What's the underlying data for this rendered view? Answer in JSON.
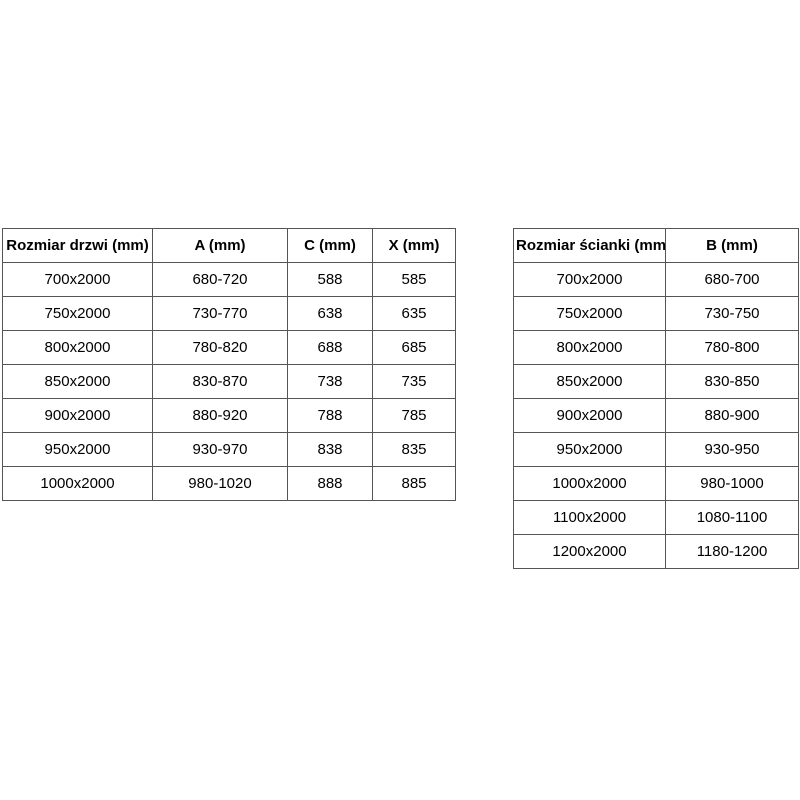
{
  "left_table": {
    "headers": [
      "Rozmiar drzwi (mm)",
      "A (mm)",
      "C (mm)",
      "X (mm)"
    ],
    "rows": [
      [
        "700x2000",
        "680-720",
        "588",
        "585"
      ],
      [
        "750x2000",
        "730-770",
        "638",
        "635"
      ],
      [
        "800x2000",
        "780-820",
        "688",
        "685"
      ],
      [
        "850x2000",
        "830-870",
        "738",
        "735"
      ],
      [
        "900x2000",
        "880-920",
        "788",
        "785"
      ],
      [
        "950x2000",
        "930-970",
        "838",
        "835"
      ],
      [
        "1000x2000",
        "980-1020",
        "888",
        "885"
      ]
    ]
  },
  "right_table": {
    "headers": [
      "Rozmiar ścianki (mm)",
      "B (mm)"
    ],
    "rows": [
      [
        "700x2000",
        "680-700"
      ],
      [
        "750x2000",
        "730-750"
      ],
      [
        "800x2000",
        "780-800"
      ],
      [
        "850x2000",
        "830-850"
      ],
      [
        "900x2000",
        "880-900"
      ],
      [
        "950x2000",
        "930-950"
      ],
      [
        "1000x2000",
        "980-1000"
      ],
      [
        "1100x2000",
        "1080-1100"
      ],
      [
        "1200x2000",
        "1180-1200"
      ]
    ]
  },
  "colors": {
    "background": "#ffffff",
    "border": "#555555",
    "text": "#000000"
  }
}
